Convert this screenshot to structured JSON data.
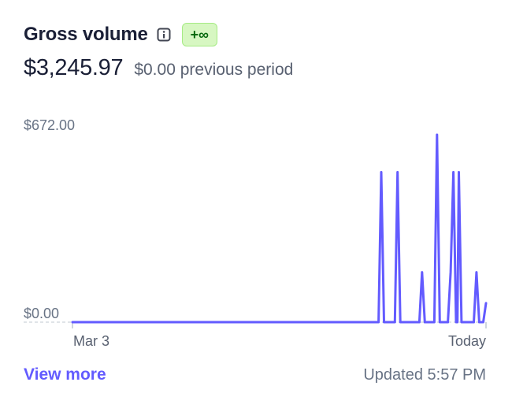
{
  "card": {
    "title": "Gross volume",
    "info_icon": "info-icon",
    "badge": "+∞",
    "amount": "$3,245.97",
    "previous": "$0.00 previous period",
    "view_more": "View more",
    "updated": "Updated 5:57 PM"
  },
  "colors": {
    "line": "#635bff",
    "badge_bg": "#d7f7c2",
    "badge_text": "#05690d",
    "link": "#635bff"
  },
  "chart_data": {
    "type": "line",
    "y_max_label": "$672.00",
    "y_min_label": "$0.00",
    "x_start_label": "Mar 3",
    "x_end_label": "Today",
    "ylim": [
      0,
      672
    ],
    "points": [
      [
        0,
        0
      ],
      [
        223,
        0
      ],
      [
        225,
        0
      ],
      [
        227,
        538
      ],
      [
        229,
        0
      ],
      [
        237,
        0
      ],
      [
        239,
        538
      ],
      [
        241,
        0
      ],
      [
        255,
        0
      ],
      [
        257,
        179
      ],
      [
        259,
        0
      ],
      [
        266,
        0
      ],
      [
        268,
        672
      ],
      [
        270,
        0
      ],
      [
        276,
        0
      ],
      [
        278,
        179
      ],
      [
        280,
        538
      ],
      [
        282,
        0
      ],
      [
        283,
        0
      ],
      [
        284,
        538
      ],
      [
        286,
        0
      ],
      [
        295,
        0
      ],
      [
        297,
        179
      ],
      [
        299,
        0
      ],
      [
        302,
        0
      ],
      [
        304,
        68
      ]
    ],
    "x_domain": [
      0,
      304
    ]
  }
}
